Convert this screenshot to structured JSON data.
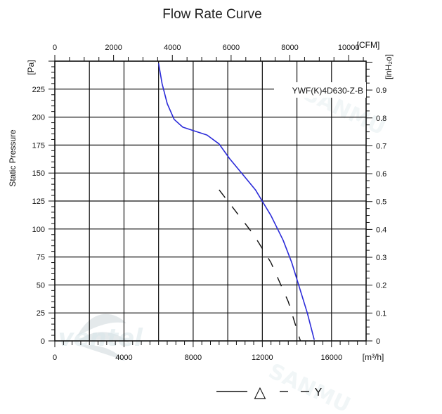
{
  "chart_data": {
    "type": "line",
    "title": "Flow Rate Curve",
    "model_label": "YWF(K)4D630-Z-B",
    "ylabel": "Static Pressure",
    "y_unit": "[Pa]",
    "y2_unit": "[inH₂o]",
    "x_unit": "[m³/h]",
    "x2_unit": "[CFM]",
    "xlim": [
      0,
      18000
    ],
    "ylim": [
      0,
      250
    ],
    "x_ticks": [
      "0",
      "4000",
      "8000",
      "12000",
      "16000"
    ],
    "y_ticks": [
      "0",
      "25",
      "50",
      "75",
      "100",
      "125",
      "150",
      "175",
      "200",
      "225"
    ],
    "x2_ticks": [
      "0",
      "2000",
      "4000",
      "6000",
      "8000",
      "10000"
    ],
    "y2_ticks": [
      "0",
      "0.1",
      "0.2",
      "0.3",
      "0.4",
      "0.5",
      "0.6",
      "0.7",
      "0.8",
      "0.9"
    ],
    "grid": true,
    "series": [
      {
        "name": "",
        "color": "#2b2bd9",
        "style": "solid",
        "x": [
          6000,
          6200,
          6500,
          6900,
          7400,
          8000,
          8800,
          9500,
          10100,
          10800,
          11600,
          12500,
          13200,
          13700,
          14100,
          14600,
          15000
        ],
        "y": [
          248,
          230,
          212,
          198,
          191,
          188,
          184,
          176,
          163,
          150,
          135,
          112,
          90,
          70,
          50,
          25,
          1
        ]
      },
      {
        "name": "",
        "color": "#111111",
        "style": "dashed",
        "x": [
          9500,
          10500,
          11500,
          12500,
          13500,
          14200
        ],
        "y": [
          135,
          115,
          95,
          70,
          35,
          0
        ]
      }
    ],
    "legend": {
      "placement": "bottom-center",
      "entry1_symbol": "△",
      "entry2_symbol": "Y"
    },
    "watermark": "SANMU"
  }
}
